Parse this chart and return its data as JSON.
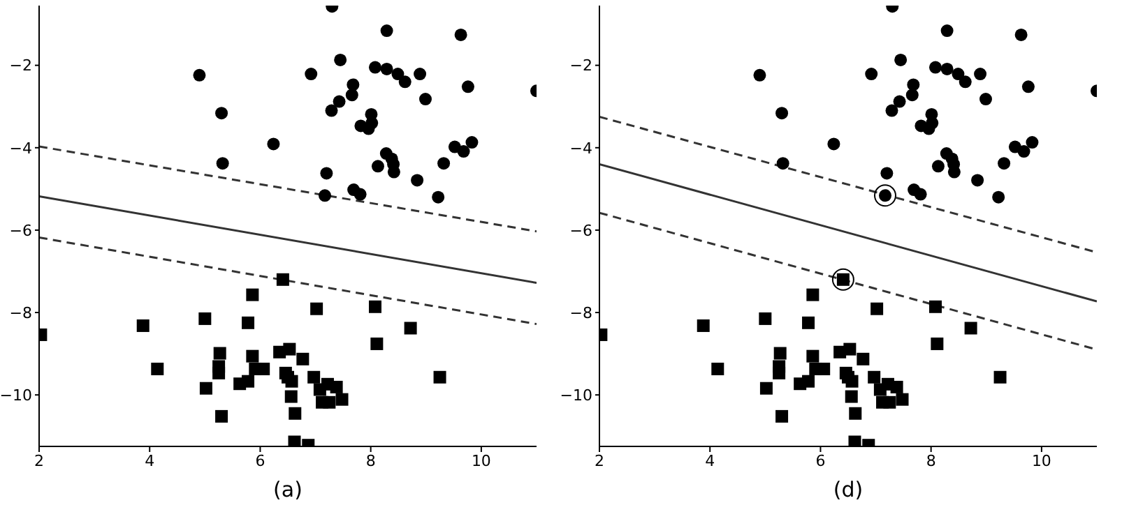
{
  "chart_data": [
    {
      "type": "scatter",
      "xlabel": "(a)",
      "xlim": [
        2,
        11
      ],
      "ylim": [
        -11.25,
        -0.55
      ],
      "xticks": [
        2,
        4,
        6,
        8,
        10
      ],
      "yticks": [
        -10,
        -8,
        -6,
        -4,
        -2
      ],
      "grid": false,
      "legend": false,
      "series": [
        {
          "type": "scatter",
          "marker": "circle",
          "color": "#000000",
          "x": [
            4.9,
            5.3,
            5.32,
            6.24,
            7.3,
            6.92,
            7.45,
            7.68,
            7.66,
            7.43,
            7.29,
            8.01,
            7.82,
            8.02,
            7.96,
            8.29,
            8.08,
            8.29,
            8.49,
            8.62,
            8.89,
            8.99,
            9.63,
            9.76,
            11.0,
            8.28,
            8.38,
            8.41,
            8.42,
            8.13,
            7.2,
            7.17,
            7.69,
            7.81,
            8.84,
            9.22,
            9.32,
            9.52,
            9.68,
            9.83
          ],
          "values": [
            -2.24,
            -3.16,
            -4.38,
            -3.91,
            -0.57,
            -2.21,
            -1.87,
            -2.47,
            -2.72,
            -2.88,
            -3.1,
            -3.19,
            -3.47,
            -3.4,
            -3.54,
            -1.16,
            -2.05,
            -2.09,
            -2.21,
            -2.4,
            -2.21,
            -2.82,
            -1.26,
            -2.52,
            -2.62,
            -4.14,
            -4.27,
            -4.4,
            -4.59,
            -4.45,
            -4.62,
            -5.16,
            -5.02,
            -5.13,
            -4.79,
            -5.2,
            -4.38,
            -3.98,
            -4.09,
            -3.87
          ]
        },
        {
          "type": "scatter",
          "marker": "square",
          "color": "#000000",
          "x": [
            2.03,
            3.88,
            4.14,
            5.0,
            5.02,
            5.27,
            5.25,
            5.25,
            5.3,
            5.86,
            5.78,
            5.86,
            5.91,
            6.06,
            5.63,
            5.78,
            6.41,
            6.35,
            6.53,
            6.77,
            6.46,
            6.5,
            6.57,
            6.56,
            6.63,
            6.62,
            6.87,
            7.02,
            6.97,
            7.08,
            7.22,
            7.38,
            7.48,
            7.12,
            7.25,
            8.08,
            8.11,
            8.72,
            9.25
          ],
          "values": [
            -8.54,
            -8.32,
            -9.37,
            -8.15,
            -9.84,
            -8.99,
            -9.31,
            -9.47,
            -10.52,
            -7.57,
            -8.25,
            -9.06,
            -9.37,
            -9.37,
            -9.73,
            -9.67,
            -7.2,
            -8.96,
            -8.89,
            -9.13,
            -9.47,
            -9.57,
            -9.67,
            -10.04,
            -10.45,
            -11.14,
            -11.22,
            -7.91,
            -9.57,
            -9.87,
            -9.74,
            -9.81,
            -10.11,
            -10.18,
            -10.18,
            -7.86,
            -8.76,
            -8.38,
            -9.57
          ]
        },
        {
          "type": "line",
          "line_style": "solid",
          "color": "#333333",
          "x": [
            2,
            11
          ],
          "values": [
            -5.18,
            -7.28
          ]
        },
        {
          "type": "line",
          "line_style": "dashed",
          "color": "#333333",
          "x": [
            2,
            11
          ],
          "values": [
            -3.97,
            -6.03
          ]
        },
        {
          "type": "line",
          "line_style": "dashed",
          "color": "#333333",
          "x": [
            2,
            11
          ],
          "values": [
            -6.18,
            -8.28
          ]
        }
      ]
    },
    {
      "type": "scatter",
      "xlabel": "(d)",
      "xlim": [
        2,
        11
      ],
      "ylim": [
        -11.25,
        -0.55
      ],
      "xticks": [
        2,
        4,
        6,
        8,
        10
      ],
      "yticks": [
        -10,
        -8,
        -6,
        -4,
        -2
      ],
      "grid": false,
      "legend": false,
      "series": [
        {
          "type": "scatter",
          "marker": "circle",
          "color": "#000000",
          "x": [
            4.9,
            5.3,
            5.32,
            6.24,
            7.3,
            6.92,
            7.45,
            7.68,
            7.66,
            7.43,
            7.29,
            8.01,
            7.82,
            8.02,
            7.96,
            8.29,
            8.08,
            8.29,
            8.49,
            8.62,
            8.89,
            8.99,
            9.63,
            9.76,
            11.0,
            8.28,
            8.38,
            8.41,
            8.42,
            8.13,
            7.2,
            7.17,
            7.69,
            7.81,
            8.84,
            9.22,
            9.32,
            9.52,
            9.68,
            9.83
          ],
          "values": [
            -2.24,
            -3.16,
            -4.38,
            -3.91,
            -0.57,
            -2.21,
            -1.87,
            -2.47,
            -2.72,
            -2.88,
            -3.1,
            -3.19,
            -3.47,
            -3.4,
            -3.54,
            -1.16,
            -2.05,
            -2.09,
            -2.21,
            -2.4,
            -2.21,
            -2.82,
            -1.26,
            -2.52,
            -2.62,
            -4.14,
            -4.27,
            -4.4,
            -4.59,
            -4.45,
            -4.62,
            -5.16,
            -5.02,
            -5.13,
            -4.79,
            -5.2,
            -4.38,
            -3.98,
            -4.09,
            -3.87
          ]
        },
        {
          "type": "scatter",
          "marker": "square",
          "color": "#000000",
          "x": [
            2.03,
            3.88,
            4.14,
            5.0,
            5.02,
            5.27,
            5.25,
            5.25,
            5.3,
            5.86,
            5.78,
            5.86,
            5.91,
            6.06,
            5.63,
            5.78,
            6.41,
            6.35,
            6.53,
            6.77,
            6.46,
            6.5,
            6.57,
            6.56,
            6.63,
            6.62,
            6.87,
            7.02,
            6.97,
            7.08,
            7.22,
            7.38,
            7.48,
            7.12,
            7.25,
            8.08,
            8.11,
            8.72,
            9.25
          ],
          "values": [
            -8.54,
            -8.32,
            -9.37,
            -8.15,
            -9.84,
            -8.99,
            -9.31,
            -9.47,
            -10.52,
            -7.57,
            -8.25,
            -9.06,
            -9.37,
            -9.37,
            -9.73,
            -9.67,
            -7.2,
            -8.96,
            -8.89,
            -9.13,
            -9.47,
            -9.57,
            -9.67,
            -10.04,
            -10.45,
            -11.14,
            -11.22,
            -7.91,
            -9.57,
            -9.87,
            -9.74,
            -9.81,
            -10.11,
            -10.18,
            -10.18,
            -7.86,
            -8.76,
            -8.38,
            -9.57
          ]
        },
        {
          "type": "bubble",
          "color": "#000000",
          "x": [
            7.17,
            6.41
          ],
          "values": [
            -5.16,
            -7.2
          ],
          "sizes": [
            1,
            1
          ]
        },
        {
          "type": "line",
          "line_style": "solid",
          "color": "#333333",
          "x": [
            2,
            11
          ],
          "values": [
            -4.4,
            -7.73
          ]
        },
        {
          "type": "line",
          "line_style": "dashed",
          "color": "#333333",
          "x": [
            2,
            11
          ],
          "values": [
            -3.25,
            -6.54
          ]
        },
        {
          "type": "line",
          "line_style": "dashed",
          "color": "#333333",
          "x": [
            2,
            11
          ],
          "values": [
            -5.58,
            -8.9
          ]
        }
      ]
    }
  ]
}
